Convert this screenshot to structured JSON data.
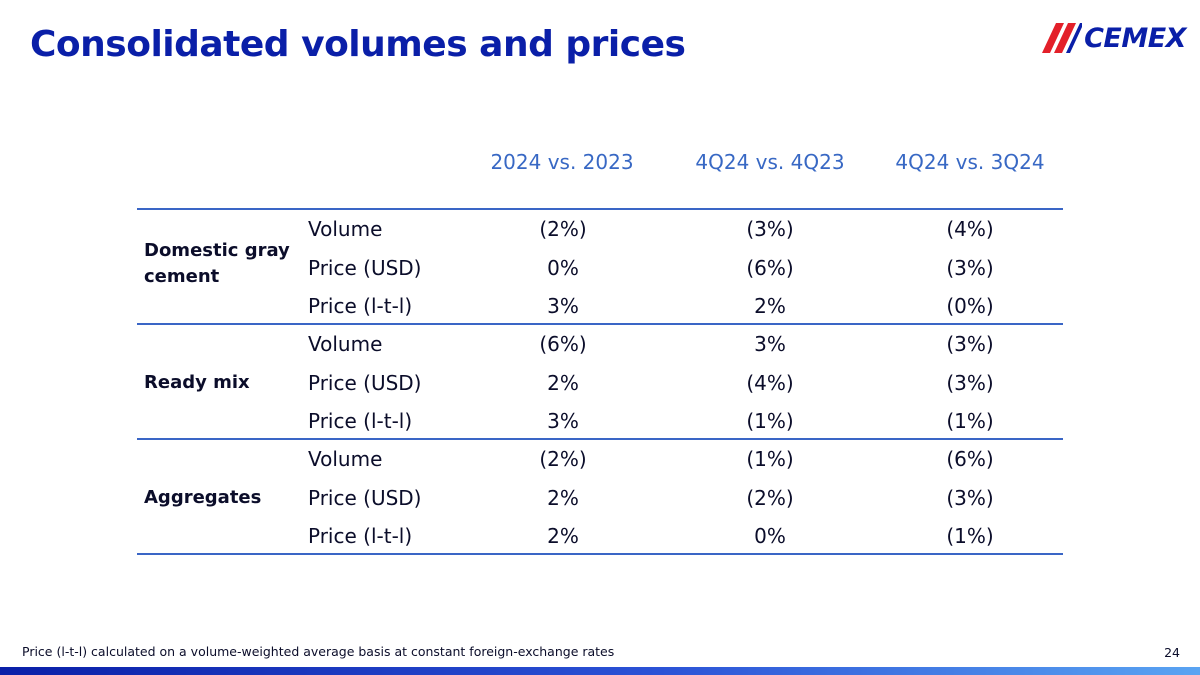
{
  "title": "Consolidated volumes and prices",
  "logo": {
    "text": "CEMEX",
    "mark_icon": "cemex-slash-icon",
    "colors": {
      "blue": "#0a1fa8",
      "red": "#e3202a"
    }
  },
  "columns": [
    "2024 vs. 2023",
    "4Q24 vs. 4Q23",
    "4Q24 vs. 3Q24"
  ],
  "groups": [
    {
      "label": "Domestic gray cement",
      "rows": [
        {
          "metric": "Volume",
          "values": [
            "(2%)",
            "(3%)",
            "(4%)"
          ]
        },
        {
          "metric": "Price (USD)",
          "values": [
            "0%",
            "(6%)",
            "(3%)"
          ]
        },
        {
          "metric": "Price (l-t-l)",
          "values": [
            "3%",
            "2%",
            "(0%)"
          ]
        }
      ]
    },
    {
      "label": "Ready mix",
      "rows": [
        {
          "metric": "Volume",
          "values": [
            "(6%)",
            "3%",
            "(3%)"
          ]
        },
        {
          "metric": "Price (USD)",
          "values": [
            "2%",
            "(4%)",
            "(3%)"
          ]
        },
        {
          "metric": "Price (l-t-l)",
          "values": [
            "3%",
            "(1%)",
            "(1%)"
          ]
        }
      ]
    },
    {
      "label": "Aggregates",
      "rows": [
        {
          "metric": "Volume",
          "values": [
            "(2%)",
            "(1%)",
            "(6%)"
          ]
        },
        {
          "metric": "Price (USD)",
          "values": [
            "2%",
            "(2%)",
            "(3%)"
          ]
        },
        {
          "metric": "Price (l-t-l)",
          "values": [
            "2%",
            "0%",
            "(1%)"
          ]
        }
      ]
    }
  ],
  "footnote": "Price (l-t-l) calculated on a volume-weighted average basis at constant foreign-exchange rates",
  "page_number": "24",
  "colors": {
    "title": "#0a1fa8",
    "header": "#3868c4",
    "rule": "#3a66c6"
  }
}
